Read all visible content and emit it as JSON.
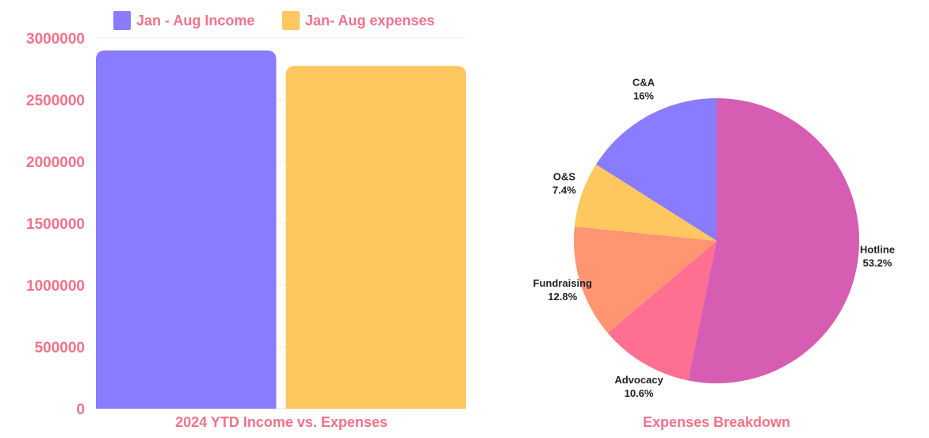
{
  "chart_data": [
    {
      "type": "bar",
      "xlabel": "2024 YTD Income vs. Expenses",
      "legend_position": "top",
      "series": [
        {
          "name": "Jan - Aug Income",
          "value": 2900000,
          "color": "#897CFF"
        },
        {
          "name": "Jan- Aug expenses",
          "value": 2775000,
          "color": "#FFC75F"
        }
      ],
      "ylim": [
        0,
        3000000
      ],
      "y_ticks": [
        "0",
        "500000",
        "1000000",
        "1500000",
        "2000000",
        "2500000",
        "3000000"
      ],
      "grid": true,
      "text_color": "#F2728A"
    },
    {
      "type": "pie",
      "title": "Expenses Breakdown",
      "title_color": "#F2728A",
      "slices": [
        {
          "label": "Hotline",
          "pct_label": "53.2%",
          "value": 53.2,
          "color": "#D65DB1"
        },
        {
          "label": "Advocacy",
          "pct_label": "10.6%",
          "value": 10.6,
          "color": "#FF6F91"
        },
        {
          "label": "Fundraising",
          "pct_label": "12.8%",
          "value": 12.8,
          "color": "#FF9671"
        },
        {
          "label": "O&S",
          "pct_label": "7.4%",
          "value": 7.4,
          "color": "#FFC75F"
        },
        {
          "label": "C&A",
          "pct_label": "16%",
          "value": 16.0,
          "color": "#897CFF"
        }
      ]
    }
  ]
}
